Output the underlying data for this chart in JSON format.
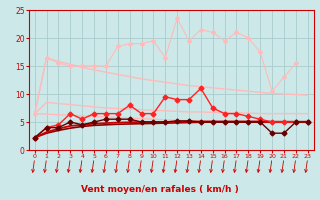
{
  "title": "",
  "xlabel": "Vent moyen/en rafales ( km/h )",
  "bg_color": "#cce8e8",
  "grid_color": "#aacccc",
  "xlim": [
    -0.5,
    23.5
  ],
  "ylim": [
    0,
    25
  ],
  "yticks": [
    0,
    5,
    10,
    15,
    20,
    25
  ],
  "xticks": [
    0,
    1,
    2,
    3,
    4,
    5,
    6,
    7,
    8,
    9,
    10,
    11,
    12,
    13,
    14,
    15,
    16,
    17,
    18,
    19,
    20,
    21,
    22,
    23
  ],
  "series": [
    {
      "comment": "light pink smooth line - top declining from ~16.5 to ~10",
      "y": [
        6.5,
        16.5,
        15.8,
        15.3,
        14.8,
        14.3,
        13.9,
        13.5,
        13.1,
        12.7,
        12.4,
        12.1,
        11.8,
        11.5,
        11.3,
        11.1,
        10.9,
        10.7,
        10.5,
        10.3,
        10.1,
        10.0,
        9.9,
        9.8
      ],
      "color": "#ffbbbb",
      "lw": 1.0,
      "marker": null,
      "zorder": 2
    },
    {
      "comment": "light pink smooth line - middle declining from ~8.5 to ~6.5",
      "y": [
        6.5,
        8.5,
        8.3,
        8.1,
        7.9,
        7.7,
        7.5,
        7.4,
        7.3,
        7.2,
        7.1,
        7.0,
        6.9,
        6.8,
        6.8,
        6.7,
        6.7,
        6.6,
        6.6,
        6.5,
        6.5,
        6.5,
        6.5,
        6.5
      ],
      "color": "#ffbbbb",
      "lw": 1.0,
      "marker": null,
      "zorder": 2
    },
    {
      "comment": "light pink smooth line - low near flat ~6.5 declining slightly to ~5",
      "y": [
        6.5,
        6.4,
        6.3,
        6.2,
        6.1,
        6.0,
        5.9,
        5.8,
        5.7,
        5.6,
        5.5,
        5.4,
        5.3,
        5.2,
        5.15,
        5.1,
        5.05,
        5.0,
        4.95,
        4.9,
        4.85,
        4.85,
        4.85,
        4.85
      ],
      "color": "#ffbbbb",
      "lw": 1.0,
      "marker": null,
      "zorder": 2
    },
    {
      "comment": "light pink with diamond markers - noisy line peaking at ~23.5",
      "y": [
        6.5,
        16.5,
        15.5,
        15.0,
        15.0,
        15.0,
        15.0,
        18.5,
        19.0,
        19.0,
        19.5,
        16.5,
        23.5,
        19.5,
        21.5,
        21.0,
        19.5,
        21.0,
        20.0,
        17.5,
        10.5,
        13.0,
        15.5,
        null
      ],
      "color": "#ffbbbb",
      "lw": 0.8,
      "marker": "D",
      "ms": 2.0,
      "zorder": 3
    },
    {
      "comment": "dark red smooth curve - bottom, slowly rising from ~2.2 to ~5",
      "y": [
        2.2,
        3.0,
        3.5,
        3.9,
        4.2,
        4.4,
        4.5,
        4.6,
        4.65,
        4.7,
        4.75,
        4.8,
        4.85,
        4.9,
        4.95,
        5.0,
        5.0,
        5.0,
        5.0,
        5.0,
        5.0,
        5.0,
        5.0,
        5.0
      ],
      "color": "#880000",
      "lw": 1.2,
      "marker": null,
      "zorder": 5
    },
    {
      "comment": "red smooth curve - rising from ~2.2 to ~5",
      "y": [
        2.2,
        3.2,
        3.8,
        4.3,
        4.5,
        4.7,
        4.8,
        4.9,
        4.95,
        5.0,
        5.0,
        5.0,
        5.05,
        5.05,
        5.1,
        5.1,
        5.1,
        5.1,
        5.1,
        5.1,
        5.05,
        5.05,
        5.05,
        5.05
      ],
      "color": "#cc0000",
      "lw": 1.3,
      "marker": null,
      "zorder": 5
    },
    {
      "comment": "bright red with diamonds - noisy peaking ~11 at x=14",
      "y": [
        2.2,
        4.0,
        4.5,
        6.5,
        5.5,
        6.5,
        6.5,
        6.5,
        8.0,
        6.5,
        6.5,
        9.5,
        9.0,
        9.0,
        11.0,
        7.5,
        6.5,
        6.5,
        6.0,
        5.5,
        5.0,
        5.0,
        5.0,
        5.0
      ],
      "color": "#ff2222",
      "lw": 1.0,
      "marker": "D",
      "ms": 2.5,
      "zorder": 6
    },
    {
      "comment": "dark red with diamonds - noisy staying around 4-5",
      "y": [
        2.2,
        4.0,
        4.0,
        5.0,
        4.5,
        5.0,
        5.5,
        5.5,
        5.5,
        5.0,
        5.0,
        5.0,
        5.2,
        5.2,
        5.0,
        5.0,
        5.0,
        5.0,
        5.0,
        5.0,
        3.0,
        3.0,
        5.0,
        5.0
      ],
      "color": "#660000",
      "lw": 1.0,
      "marker": "D",
      "ms": 2.5,
      "zorder": 6
    }
  ],
  "arrow_color": "#cc0000",
  "tick_color": "#cc0000",
  "spine_color": "#cc0000",
  "xlabel_color": "#cc0000",
  "xlabel_fontsize": 6.5,
  "xlabel_fontweight": "bold",
  "tick_fontsize": 4.5,
  "ytick_fontsize": 5.5
}
